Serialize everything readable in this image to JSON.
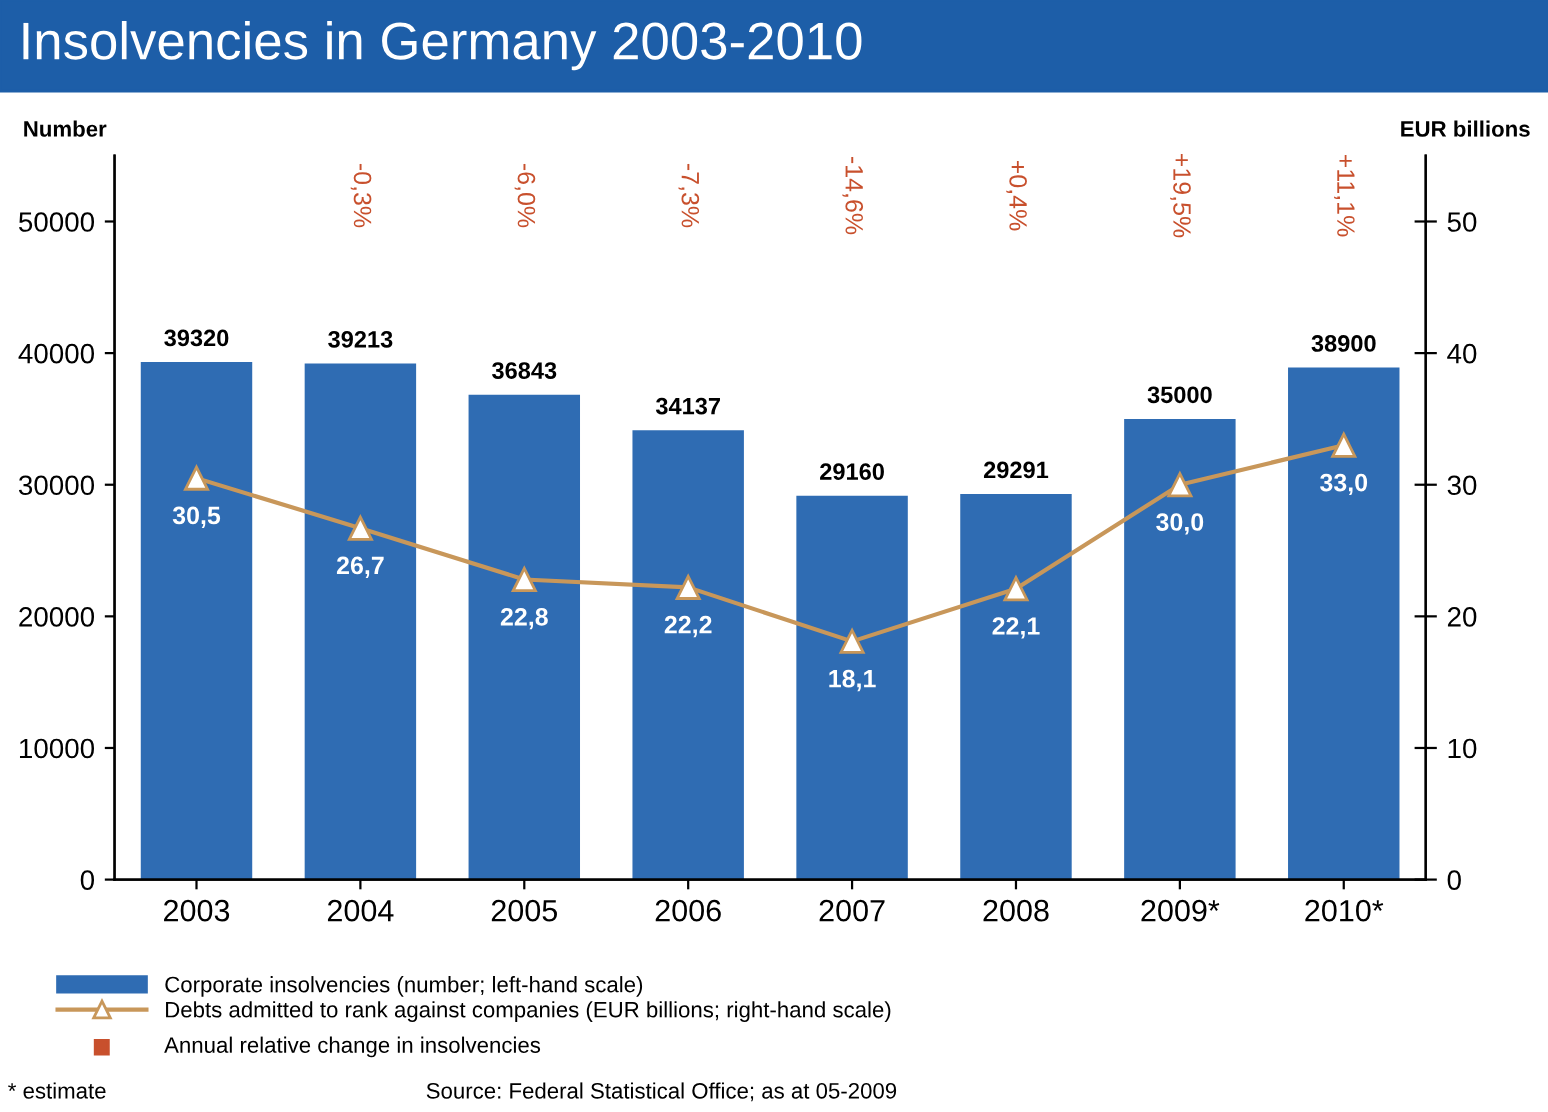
{
  "chart_data": {
    "type": "bar",
    "title": "Insolvencies in Germany 2003-2010",
    "categories": [
      "2003",
      "2004",
      "2005",
      "2006",
      "2007",
      "2008",
      "2009*",
      "2010*"
    ],
    "series": [
      {
        "name": "Corporate insolvencies (number; left-hand scale)",
        "color": "#2f6cb3",
        "values": [
          39320,
          39213,
          36843,
          34137,
          29160,
          29291,
          35000,
          38900
        ],
        "data_labels": true
      },
      {
        "name": "Debts admitted to rank against companies (EUR billions; right-hand scale)",
        "type": "line",
        "axis": "y2",
        "color": "#c8975a",
        "marker": "triangle",
        "values": [
          30.5,
          26.7,
          22.8,
          22.2,
          18.1,
          22.1,
          30.0,
          33.0
        ],
        "value_labels": [
          "30,5",
          "26,7",
          "22,8",
          "22,2",
          "18,1",
          "22,1",
          "30,0",
          "33,0"
        ]
      }
    ],
    "ylabel": "Number",
    "y2label": "EUR billions",
    "ylim": [
      0,
      55000
    ],
    "yticks": [
      0,
      10000,
      20000,
      30000,
      40000,
      50000
    ],
    "y2lim": [
      0,
      55
    ],
    "y2ticks": [
      0,
      10,
      20,
      30,
      40,
      50
    ],
    "grid": false,
    "legend": "bottom",
    "annotations": [
      "-0,3%",
      "-6,0%",
      "-7,3%",
      "-14,6%",
      "+0,4%",
      "+19,5%",
      "+11,1%",
      "Annual relative change in insolvencies",
      "* estimate",
      "Source: Federal Statistical Office; as at 05-2009"
    ]
  }
}
